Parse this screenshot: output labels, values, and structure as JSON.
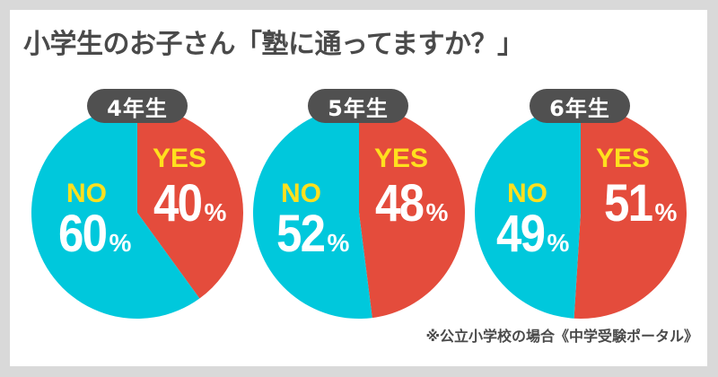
{
  "title": "小学生のお子さん「塾に通ってますか？」",
  "note": "※公立小学校の場合《中学受験ポータル》",
  "colors": {
    "yes": "#e44c3c",
    "no": "#00c8dc",
    "label": "#ffe01e",
    "badge": "#505050",
    "text": "#4a4a4a",
    "background": "#d9d9d9"
  },
  "pies": [
    {
      "grade": "4年生",
      "yes_label": "YES",
      "yes_value": "40",
      "no_label": "NO",
      "no_value": "60",
      "pct": "%"
    },
    {
      "grade": "5年生",
      "yes_label": "YES",
      "yes_value": "48",
      "no_label": "NO",
      "no_value": "52",
      "pct": "%"
    },
    {
      "grade": "6年生",
      "yes_label": "YES",
      "yes_value": "51",
      "no_label": "NO",
      "no_value": "49",
      "pct": "%"
    }
  ],
  "chart_data": {
    "type": "pie",
    "title": "小学生のお子さん「塾に通ってますか？」",
    "note": "※公立小学校の場合《中学受験ポータル》",
    "categories": [
      "YES",
      "NO"
    ],
    "series": [
      {
        "name": "4年生",
        "values": [
          40,
          60
        ]
      },
      {
        "name": "5年生",
        "values": [
          48,
          52
        ]
      },
      {
        "name": "6年生",
        "values": [
          51,
          49
        ]
      }
    ],
    "units": "%",
    "colors": {
      "YES": "#e44c3c",
      "NO": "#00c8dc"
    }
  }
}
